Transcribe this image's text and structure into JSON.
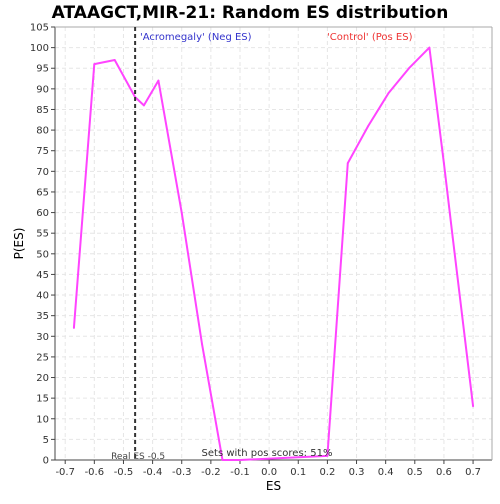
{
  "chart_data": {
    "type": "line",
    "title": "ATAAGCT,MIR-21: Random ES distribution",
    "xlabel": "ES",
    "ylabel": "P(ES)",
    "xlim": [
      -0.735,
      0.765
    ],
    "ylim": [
      0,
      105
    ],
    "xticks": [
      -0.7,
      -0.6,
      -0.5,
      -0.4,
      -0.3,
      -0.2,
      -0.1,
      0.0,
      0.1,
      0.2,
      0.3,
      0.4,
      0.5,
      0.6,
      0.7
    ],
    "xtick_labels": [
      "-0.7",
      "-0.6",
      "-0.5",
      "-0.4",
      "-0.3",
      "-0.2",
      "-0.1",
      "0.0",
      "0.1",
      "0.2",
      "0.3",
      "0.4",
      "0.5",
      "0.6",
      "0.7"
    ],
    "yticks": [
      0,
      5,
      10,
      15,
      20,
      25,
      30,
      35,
      40,
      45,
      50,
      55,
      60,
      65,
      70,
      75,
      80,
      85,
      90,
      95,
      100,
      105
    ],
    "grid": true,
    "series": [
      {
        "color": "#ff44ff",
        "x": [
          -0.67,
          -0.6,
          -0.53,
          -0.46,
          -0.43,
          -0.38,
          -0.3,
          -0.23,
          -0.16,
          -0.1,
          0.2,
          0.27,
          0.34,
          0.41,
          0.48,
          0.55,
          0.6,
          0.63,
          0.7
        ],
        "y": [
          32,
          96,
          97,
          88,
          86,
          92,
          60,
          28,
          0,
          0,
          1,
          72,
          81,
          89,
          95,
          100,
          72,
          54,
          13
        ]
      }
    ],
    "real_es": {
      "x": -0.46,
      "label": "Real ES -0.5"
    },
    "annotations": [
      {
        "text": "'Acromegaly' (Neg ES)",
        "color": "#3333cc"
      },
      {
        "text": "'Control' (Pos ES)",
        "color": "#ee3333"
      },
      {
        "text": "Sets with pos scores: 51%",
        "color": "#333333"
      }
    ]
  }
}
